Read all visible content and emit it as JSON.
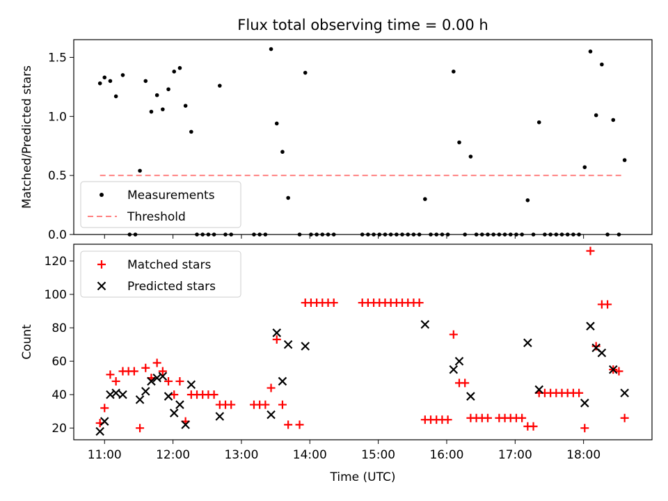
{
  "chart_data": [
    {
      "type": "scatter",
      "title": "Flux total observing time = 0.00 h",
      "xlabel": "",
      "ylabel": "Matched/Predicted stars",
      "xlim": [
        "10:33",
        "19:00"
      ],
      "ylim": [
        0,
        1.65
      ],
      "yticks": [
        "0.0",
        "0.5",
        "1.0",
        "1.5"
      ],
      "xticks": [
        "11:00",
        "12:00",
        "13:00",
        "14:00",
        "15:00",
        "16:00",
        "17:00",
        "18:00"
      ],
      "legend_position": "lower-left",
      "series": [
        {
          "name": "Measurements",
          "marker": "dot",
          "color": "#000000",
          "points": [
            [
              "10:56",
              1.28
            ],
            [
              "11:00",
              1.33
            ],
            [
              "11:05",
              1.3
            ],
            [
              "11:10",
              1.17
            ],
            [
              "11:16",
              1.35
            ],
            [
              "11:22",
              0.0
            ],
            [
              "11:27",
              0.0
            ],
            [
              "11:31",
              0.54
            ],
            [
              "11:36",
              1.3
            ],
            [
              "11:41",
              1.04
            ],
            [
              "11:46",
              1.18
            ],
            [
              "11:51",
              1.06
            ],
            [
              "11:56",
              1.23
            ],
            [
              "12:01",
              1.38
            ],
            [
              "12:06",
              1.41
            ],
            [
              "12:11",
              1.09
            ],
            [
              "12:16",
              0.87
            ],
            [
              "12:21",
              0.0
            ],
            [
              "12:26",
              0.0
            ],
            [
              "12:31",
              0.0
            ],
            [
              "12:36",
              0.0
            ],
            [
              "12:41",
              1.26
            ],
            [
              "12:46",
              0.0
            ],
            [
              "12:51",
              0.0
            ],
            [
              "13:11",
              0.0
            ],
            [
              "13:16",
              0.0
            ],
            [
              "13:21",
              0.0
            ],
            [
              "13:26",
              1.57
            ],
            [
              "13:31",
              0.94
            ],
            [
              "13:36",
              0.7
            ],
            [
              "13:41",
              0.31
            ],
            [
              "13:51",
              0.0
            ],
            [
              "13:56",
              1.37
            ],
            [
              "14:01",
              0.0
            ],
            [
              "14:06",
              0.0
            ],
            [
              "14:11",
              0.0
            ],
            [
              "14:16",
              0.0
            ],
            [
              "14:21",
              0.0
            ],
            [
              "14:46",
              0.0
            ],
            [
              "14:51",
              0.0
            ],
            [
              "14:56",
              0.0
            ],
            [
              "15:01",
              0.0
            ],
            [
              "15:06",
              0.0
            ],
            [
              "15:11",
              0.0
            ],
            [
              "15:16",
              0.0
            ],
            [
              "15:21",
              0.0
            ],
            [
              "15:26",
              0.0
            ],
            [
              "15:31",
              0.0
            ],
            [
              "15:36",
              0.0
            ],
            [
              "15:41",
              0.3
            ],
            [
              "15:46",
              0.0
            ],
            [
              "15:51",
              0.0
            ],
            [
              "15:56",
              0.0
            ],
            [
              "16:01",
              0.0
            ],
            [
              "16:06",
              1.38
            ],
            [
              "16:11",
              0.78
            ],
            [
              "16:16",
              0.0
            ],
            [
              "16:21",
              0.66
            ],
            [
              "16:26",
              0.0
            ],
            [
              "16:31",
              0.0
            ],
            [
              "16:36",
              0.0
            ],
            [
              "16:41",
              0.0
            ],
            [
              "16:46",
              0.0
            ],
            [
              "16:51",
              0.0
            ],
            [
              "16:56",
              0.0
            ],
            [
              "17:01",
              0.0
            ],
            [
              "17:06",
              0.0
            ],
            [
              "17:11",
              0.29
            ],
            [
              "17:16",
              0.0
            ],
            [
              "17:21",
              0.95
            ],
            [
              "17:26",
              0.0
            ],
            [
              "17:31",
              0.0
            ],
            [
              "17:36",
              0.0
            ],
            [
              "17:41",
              0.0
            ],
            [
              "17:46",
              0.0
            ],
            [
              "17:51",
              0.0
            ],
            [
              "17:56",
              0.0
            ],
            [
              "18:01",
              0.57
            ],
            [
              "18:06",
              1.55
            ],
            [
              "18:11",
              1.01
            ],
            [
              "18:16",
              1.44
            ],
            [
              "18:21",
              0.0
            ],
            [
              "18:26",
              0.97
            ],
            [
              "18:31",
              0.0
            ],
            [
              "18:36",
              0.63
            ]
          ]
        },
        {
          "name": "Threshold",
          "marker": "dashed-line",
          "color": "#ff7f7f",
          "points": [
            [
              "10:56",
              0.5
            ],
            [
              "18:36",
              0.5
            ]
          ]
        }
      ]
    },
    {
      "type": "scatter",
      "title": "",
      "xlabel": "Time (UTC)",
      "ylabel": "Count",
      "xlim": [
        "10:33",
        "19:00"
      ],
      "ylim": [
        13,
        130
      ],
      "yticks": [
        "20",
        "40",
        "60",
        "80",
        "100",
        "120"
      ],
      "xticks": [
        "11:00",
        "12:00",
        "13:00",
        "14:00",
        "15:00",
        "16:00",
        "17:00",
        "18:00"
      ],
      "legend_position": "upper-left",
      "series": [
        {
          "name": "Matched stars",
          "marker": "plus",
          "color": "#ff0000",
          "points": [
            [
              "10:56",
              23
            ],
            [
              "11:00",
              32
            ],
            [
              "11:05",
              52
            ],
            [
              "11:10",
              48
            ],
            [
              "11:16",
              54
            ],
            [
              "11:21",
              54
            ],
            [
              "11:26",
              54
            ],
            [
              "11:31",
              20
            ],
            [
              "11:36",
              56
            ],
            [
              "11:41",
              50
            ],
            [
              "11:46",
              59
            ],
            [
              "11:51",
              54
            ],
            [
              "11:56",
              48
            ],
            [
              "12:01",
              40
            ],
            [
              "12:06",
              48
            ],
            [
              "12:11",
              24
            ],
            [
              "12:16",
              40
            ],
            [
              "12:21",
              40
            ],
            [
              "12:26",
              40
            ],
            [
              "12:31",
              40
            ],
            [
              "12:36",
              40
            ],
            [
              "12:41",
              34
            ],
            [
              "12:46",
              34
            ],
            [
              "12:51",
              34
            ],
            [
              "13:11",
              34
            ],
            [
              "13:16",
              34
            ],
            [
              "13:21",
              34
            ],
            [
              "13:26",
              44
            ],
            [
              "13:31",
              73
            ],
            [
              "13:36",
              34
            ],
            [
              "13:41",
              22
            ],
            [
              "13:51",
              22
            ],
            [
              "13:56",
              95
            ],
            [
              "14:01",
              95
            ],
            [
              "14:06",
              95
            ],
            [
              "14:11",
              95
            ],
            [
              "14:16",
              95
            ],
            [
              "14:21",
              95
            ],
            [
              "14:46",
              95
            ],
            [
              "14:51",
              95
            ],
            [
              "14:56",
              95
            ],
            [
              "15:01",
              95
            ],
            [
              "15:06",
              95
            ],
            [
              "15:11",
              95
            ],
            [
              "15:16",
              95
            ],
            [
              "15:21",
              95
            ],
            [
              "15:26",
              95
            ],
            [
              "15:31",
              95
            ],
            [
              "15:36",
              95
            ],
            [
              "15:41",
              25
            ],
            [
              "15:46",
              25
            ],
            [
              "15:51",
              25
            ],
            [
              "15:56",
              25
            ],
            [
              "16:01",
              25
            ],
            [
              "16:06",
              76
            ],
            [
              "16:11",
              47
            ],
            [
              "16:16",
              47
            ],
            [
              "16:21",
              26
            ],
            [
              "16:26",
              26
            ],
            [
              "16:31",
              26
            ],
            [
              "16:36",
              26
            ],
            [
              "16:46",
              26
            ],
            [
              "16:51",
              26
            ],
            [
              "16:56",
              26
            ],
            [
              "17:01",
              26
            ],
            [
              "17:06",
              26
            ],
            [
              "17:11",
              21
            ],
            [
              "17:16",
              21
            ],
            [
              "17:21",
              41
            ],
            [
              "17:26",
              41
            ],
            [
              "17:31",
              41
            ],
            [
              "17:36",
              41
            ],
            [
              "17:41",
              41
            ],
            [
              "17:46",
              41
            ],
            [
              "17:51",
              41
            ],
            [
              "17:56",
              41
            ],
            [
              "18:01",
              20
            ],
            [
              "18:06",
              126
            ],
            [
              "18:11",
              69
            ],
            [
              "18:16",
              94
            ],
            [
              "18:21",
              94
            ],
            [
              "18:26",
              55
            ],
            [
              "18:31",
              54
            ],
            [
              "18:36",
              26
            ]
          ]
        },
        {
          "name": "Predicted stars",
          "marker": "cross",
          "color": "#000000",
          "points": [
            [
              "10:56",
              18
            ],
            [
              "11:00",
              24
            ],
            [
              "11:05",
              40
            ],
            [
              "11:10",
              41
            ],
            [
              "11:16",
              40
            ],
            [
              "11:31",
              37
            ],
            [
              "11:36",
              42
            ],
            [
              "11:41",
              48
            ],
            [
              "11:46",
              50
            ],
            [
              "11:51",
              51
            ],
            [
              "11:56",
              39
            ],
            [
              "12:01",
              29
            ],
            [
              "12:06",
              34
            ],
            [
              "12:11",
              22
            ],
            [
              "12:16",
              46
            ],
            [
              "12:41",
              27
            ],
            [
              "13:26",
              28
            ],
            [
              "13:31",
              77
            ],
            [
              "13:36",
              48
            ],
            [
              "13:41",
              70
            ],
            [
              "13:56",
              69
            ],
            [
              "15:41",
              82
            ],
            [
              "16:06",
              55
            ],
            [
              "16:11",
              60
            ],
            [
              "16:21",
              39
            ],
            [
              "17:11",
              71
            ],
            [
              "17:21",
              43
            ],
            [
              "18:01",
              35
            ],
            [
              "18:06",
              81
            ],
            [
              "18:11",
              68
            ],
            [
              "18:16",
              65
            ],
            [
              "18:26",
              55
            ],
            [
              "18:36",
              41
            ]
          ]
        }
      ]
    }
  ]
}
